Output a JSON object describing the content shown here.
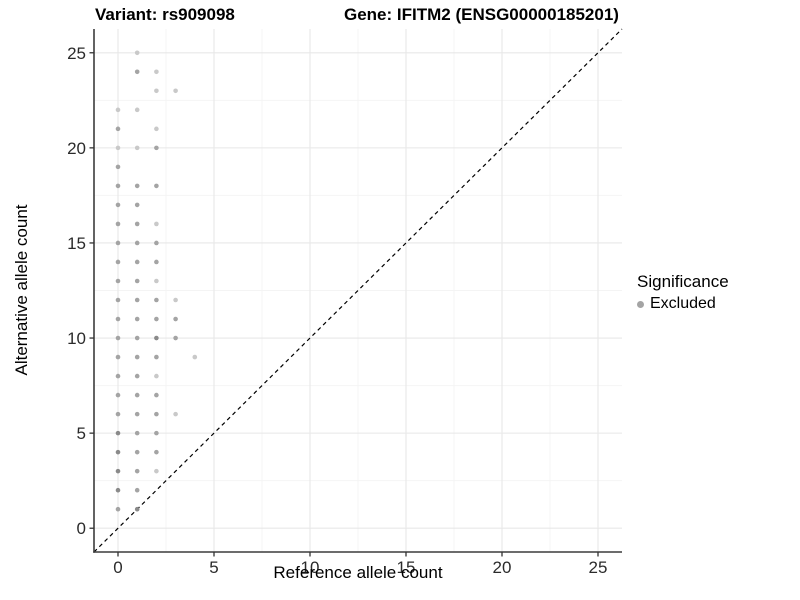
{
  "chart_data": {
    "type": "scatter",
    "title_left": "Variant: rs909098",
    "title_right": "Gene: IFITM2 (ENSG00000185201)",
    "xlabel": "Reference allele count",
    "ylabel": "Alternative allele count",
    "xlim": [
      -1.25,
      26.25
    ],
    "ylim": [
      -1.25,
      26.25
    ],
    "x_ticks": [
      0,
      5,
      10,
      15,
      20,
      25
    ],
    "y_ticks": [
      0,
      5,
      10,
      15,
      20,
      25
    ],
    "x_minor_ticks": [
      2.5,
      7.5,
      12.5,
      17.5,
      22.5
    ],
    "y_minor_ticks": [
      2.5,
      7.5,
      12.5,
      17.5,
      22.5
    ],
    "grid": "major+minor",
    "identity_line": {
      "slope": 1,
      "intercept": 0,
      "style": "dashed",
      "color": "#000000"
    },
    "legend": {
      "title": "Significance",
      "position": "right",
      "items": [
        {
          "label": "Excluded",
          "color": "#a4a4a4"
        }
      ]
    },
    "point_shade_colors": {
      "L": "#c9c9c9",
      "M": "#a4a4a4",
      "D": "#8a8a8a"
    },
    "series": [
      {
        "name": "Excluded",
        "points": [
          [
            0,
            1,
            "M"
          ],
          [
            1,
            1,
            "D"
          ],
          [
            0,
            2,
            "D"
          ],
          [
            1,
            2,
            "M"
          ],
          [
            0,
            3,
            "D"
          ],
          [
            1,
            3,
            "M"
          ],
          [
            2,
            3,
            "L"
          ],
          [
            0,
            4,
            "D"
          ],
          [
            1,
            4,
            "M"
          ],
          [
            2,
            4,
            "M"
          ],
          [
            0,
            5,
            "D"
          ],
          [
            1,
            5,
            "M"
          ],
          [
            2,
            5,
            "M"
          ],
          [
            0,
            6,
            "M"
          ],
          [
            1,
            6,
            "M"
          ],
          [
            2,
            6,
            "M"
          ],
          [
            3,
            6,
            "L"
          ],
          [
            0,
            7,
            "M"
          ],
          [
            1,
            7,
            "M"
          ],
          [
            2,
            7,
            "M"
          ],
          [
            0,
            8,
            "M"
          ],
          [
            1,
            8,
            "M"
          ],
          [
            2,
            8,
            "L"
          ],
          [
            0,
            9,
            "M"
          ],
          [
            1,
            9,
            "M"
          ],
          [
            2,
            9,
            "M"
          ],
          [
            4,
            9,
            "L"
          ],
          [
            0,
            10,
            "M"
          ],
          [
            1,
            10,
            "M"
          ],
          [
            2,
            10,
            "D"
          ],
          [
            3,
            10,
            "M"
          ],
          [
            0,
            11,
            "M"
          ],
          [
            1,
            11,
            "M"
          ],
          [
            2,
            11,
            "M"
          ],
          [
            3,
            11,
            "M"
          ],
          [
            0,
            12,
            "M"
          ],
          [
            1,
            12,
            "M"
          ],
          [
            2,
            12,
            "M"
          ],
          [
            3,
            12,
            "L"
          ],
          [
            0,
            13,
            "M"
          ],
          [
            1,
            13,
            "M"
          ],
          [
            2,
            13,
            "L"
          ],
          [
            0,
            14,
            "M"
          ],
          [
            1,
            14,
            "M"
          ],
          [
            2,
            14,
            "M"
          ],
          [
            0,
            15,
            "M"
          ],
          [
            1,
            15,
            "M"
          ],
          [
            2,
            15,
            "M"
          ],
          [
            0,
            16,
            "M"
          ],
          [
            1,
            16,
            "M"
          ],
          [
            2,
            16,
            "L"
          ],
          [
            0,
            17,
            "M"
          ],
          [
            1,
            17,
            "M"
          ],
          [
            0,
            18,
            "M"
          ],
          [
            1,
            18,
            "M"
          ],
          [
            2,
            18,
            "M"
          ],
          [
            0,
            19,
            "M"
          ],
          [
            0,
            20,
            "L"
          ],
          [
            1,
            20,
            "L"
          ],
          [
            2,
            20,
            "M"
          ],
          [
            0,
            21,
            "M"
          ],
          [
            2,
            21,
            "L"
          ],
          [
            0,
            22,
            "L"
          ],
          [
            1,
            22,
            "L"
          ],
          [
            2,
            23,
            "L"
          ],
          [
            3,
            23,
            "L"
          ],
          [
            1,
            24,
            "M"
          ],
          [
            2,
            24,
            "L"
          ],
          [
            1,
            25,
            "L"
          ]
        ]
      }
    ]
  },
  "colors": {
    "background": "#ffffff",
    "grid_major": "#e8e8e8",
    "grid_minor": "#f4f4f4",
    "axis_line": "#3c3c3c",
    "tick_mark": "#333333",
    "tick_label": "#2b2b2b",
    "title": "#000000"
  }
}
